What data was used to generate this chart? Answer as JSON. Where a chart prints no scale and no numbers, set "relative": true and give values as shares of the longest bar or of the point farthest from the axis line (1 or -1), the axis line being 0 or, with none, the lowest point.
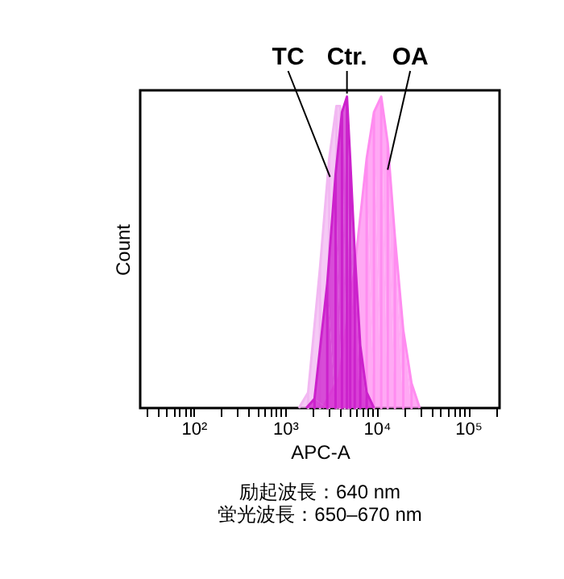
{
  "chart_data": {
    "type": "area",
    "relative": true,
    "log": "x",
    "xlabel": "APC-A",
    "ylabel": "Count",
    "grid": false,
    "tick_labels": "x",
    "xlim": [
      26,
      220000
    ],
    "xticks": [
      {
        "value": 30,
        "label": null
      },
      {
        "value": 40,
        "label": null
      },
      {
        "value": 50,
        "label": null
      },
      {
        "value": 60,
        "label": null
      },
      {
        "value": 70,
        "label": null
      },
      {
        "value": 80,
        "label": null
      },
      {
        "value": 90,
        "label": null
      },
      {
        "value": 100,
        "label": "10²"
      },
      {
        "value": 200,
        "label": null
      },
      {
        "value": 300,
        "label": null
      },
      {
        "value": 400,
        "label": null
      },
      {
        "value": 500,
        "label": null
      },
      {
        "value": 600,
        "label": null
      },
      {
        "value": 700,
        "label": null
      },
      {
        "value": 800,
        "label": null
      },
      {
        "value": 900,
        "label": null
      },
      {
        "value": 1000,
        "label": "10³"
      },
      {
        "value": 2000,
        "label": null
      },
      {
        "value": 3000,
        "label": null
      },
      {
        "value": 4000,
        "label": null
      },
      {
        "value": 5000,
        "label": null
      },
      {
        "value": 6000,
        "label": null
      },
      {
        "value": 7000,
        "label": null
      },
      {
        "value": 8000,
        "label": null
      },
      {
        "value": 9000,
        "label": null
      },
      {
        "value": 10000,
        "label": "10⁴"
      },
      {
        "value": 20000,
        "label": null
      },
      {
        "value": 30000,
        "label": null
      },
      {
        "value": 40000,
        "label": null
      },
      {
        "value": 50000,
        "label": null
      },
      {
        "value": 60000,
        "label": null
      },
      {
        "value": 70000,
        "label": null
      },
      {
        "value": 80000,
        "label": null
      },
      {
        "value": 90000,
        "label": null
      },
      {
        "value": 100000,
        "label": "10⁵"
      },
      {
        "value": 200000,
        "label": null
      }
    ],
    "series": [
      {
        "name": "TC",
        "color": "#f2b8f2",
        "x": [
          1410,
          1780,
          2400,
          3020,
          3630,
          3980,
          4470,
          5010,
          6030,
          7240
        ],
        "values": [
          0,
          0.05,
          0.45,
          0.8,
          0.97,
          0.97,
          0.7,
          0.4,
          0.1,
          0
        ]
      },
      {
        "name": "Ctr.",
        "color": "#cc22cc",
        "x": [
          1700,
          2090,
          2880,
          3550,
          4170,
          4730,
          5130,
          5750,
          6610,
          7760,
          9330
        ],
        "values": [
          0,
          0.03,
          0.4,
          0.75,
          0.95,
          1.0,
          0.8,
          0.5,
          0.2,
          0.05,
          0
        ]
      },
      {
        "name": "OA",
        "color": "#ff8cf0",
        "x": [
          2570,
          3890,
          5750,
          7760,
          9330,
          11200,
          13200,
          15800,
          19500,
          24000,
          29500
        ],
        "values": [
          0,
          0.1,
          0.45,
          0.8,
          0.95,
          1.0,
          0.85,
          0.55,
          0.25,
          0.08,
          0
        ]
      }
    ],
    "annotations": [
      "励起波長：640 nm",
      "蛍光波長：650–670 nm"
    ]
  }
}
